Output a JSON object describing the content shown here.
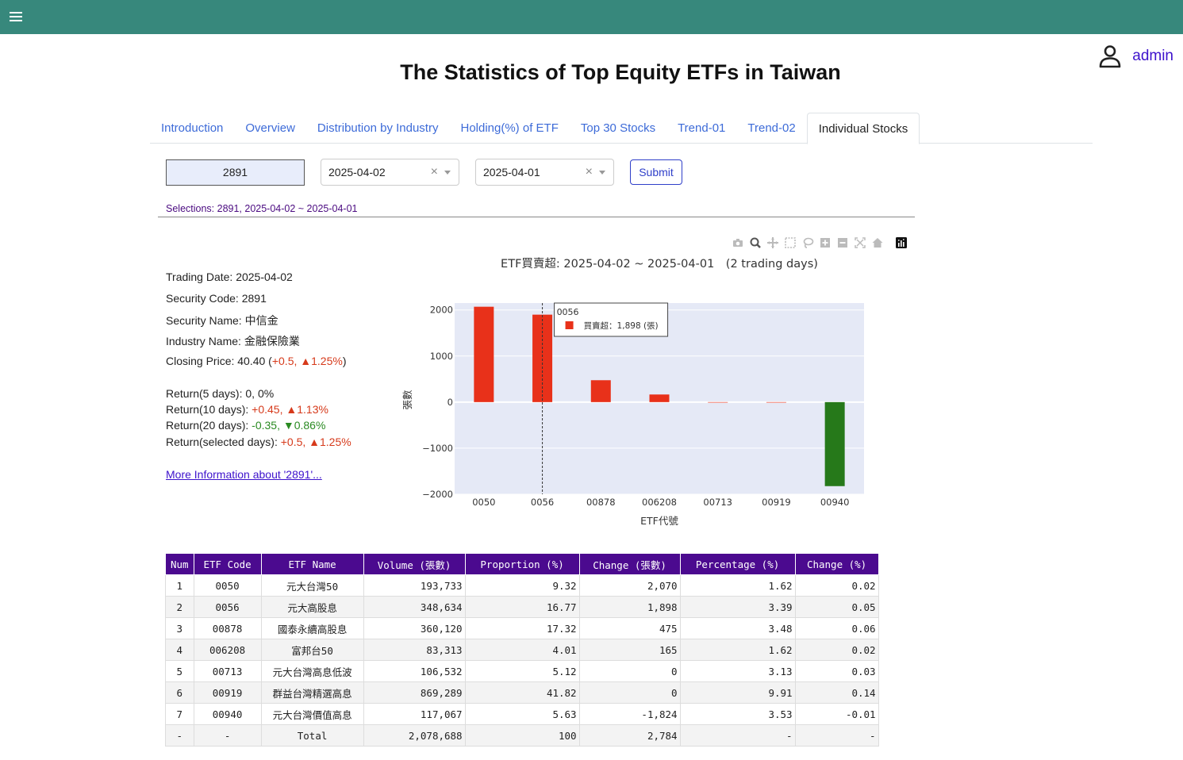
{
  "header": {
    "menu_icon": "hamburger-icon",
    "user_icon": "user-icon",
    "user_name": "admin"
  },
  "page_title": "The Statistics of Top Equity ETFs in Taiwan",
  "tabs": [
    {
      "label": "Introduction"
    },
    {
      "label": "Overview"
    },
    {
      "label": "Distribution by Industry"
    },
    {
      "label": "Holding(%) of ETF"
    },
    {
      "label": "Top 30 Stocks"
    },
    {
      "label": "Trend-01"
    },
    {
      "label": "Trend-02"
    },
    {
      "label": "Individual Stocks",
      "active": true
    }
  ],
  "controls": {
    "code_value": "2891",
    "start_date": "2025-04-02",
    "end_date": "2025-04-01",
    "clear_glyph": "×",
    "submit_label": "Submit",
    "selections": "Selections: 2891, 2025-04-02 ~ 2025-04-01"
  },
  "stock_info": {
    "trading_date": "Trading Date: 2025-04-02",
    "security_code": "Security Code: 2891",
    "security_name": "Security Name: 中信金",
    "industry_name": "Industry Name: 金融保險業",
    "closing_prefix": "Closing Price: 40.40 (",
    "closing_change": "+0.5, ▲1.25%",
    "closing_suffix": ")",
    "returns": [
      {
        "label": "Return(5 days): ",
        "value": "0, 0%",
        "color": "neutral"
      },
      {
        "label": "Return(10 days): ",
        "value": "+0.45, ▲1.13%",
        "color": "red"
      },
      {
        "label": "Return(20 days): ",
        "value": "-0.35, ▼0.86%",
        "color": "green"
      },
      {
        "label": "Return(selected days): ",
        "value": "+0.5, ▲1.25%",
        "color": "red"
      }
    ],
    "more_link": "More Information about '2891'..."
  },
  "modebar_icons": [
    "camera-icon",
    "zoom-icon",
    "pan-icon",
    "box-select-icon",
    "lasso-icon",
    "zoom-in-icon",
    "zoom-out-icon",
    "autoscale-icon",
    "reset-axes-icon",
    "plotly-logo-icon"
  ],
  "chart_data": {
    "type": "bar",
    "title": "ETF買賣超: 2025-04-02 ~ 2025-04-01　(2 trading days)",
    "xlabel": "ETF代號",
    "ylabel": "張數",
    "categories": [
      "0050",
      "0056",
      "00878",
      "006208",
      "00713",
      "00919",
      "00940"
    ],
    "values": [
      2070,
      1898,
      475,
      165,
      0,
      0,
      -1824
    ],
    "ylim": [
      -2000,
      2150
    ],
    "yticks": [
      -2000,
      -1000,
      0,
      1000,
      2000
    ],
    "ytick_labels": [
      "−2000",
      "−1000",
      "0",
      "1000",
      "2000"
    ],
    "colors": {
      "positive": "#e8311a",
      "negative": "#26791a",
      "plot_bg": "#e5e9f6"
    },
    "hover": {
      "category": "0056",
      "label": "買賣超：1,898 (張)"
    }
  },
  "table": {
    "headers": [
      "Num",
      "ETF Code",
      "ETF Name",
      "Volume (張數)",
      "Proportion (%)",
      "Change (張數)",
      "Percentage (%)",
      "Change (%)"
    ],
    "rows": [
      [
        "1",
        "0050",
        "元大台灣50",
        "193,733",
        "9.32",
        "2,070",
        "1.62",
        "0.02"
      ],
      [
        "2",
        "0056",
        "元大高股息",
        "348,634",
        "16.77",
        "1,898",
        "3.39",
        "0.05"
      ],
      [
        "3",
        "00878",
        "國泰永續高股息",
        "360,120",
        "17.32",
        "475",
        "3.48",
        "0.06"
      ],
      [
        "4",
        "006208",
        "富邦台50",
        "83,313",
        "4.01",
        "165",
        "1.62",
        "0.02"
      ],
      [
        "5",
        "00713",
        "元大台灣高息低波",
        "106,532",
        "5.12",
        "0",
        "3.13",
        "0.03"
      ],
      [
        "6",
        "00919",
        "群益台灣精選高息",
        "869,289",
        "41.82",
        "0",
        "9.91",
        "0.14"
      ],
      [
        "7",
        "00940",
        "元大台灣價值高息",
        "117,067",
        "5.63",
        "-1,824",
        "3.53",
        "-0.01"
      ],
      [
        "-",
        "-",
        "Total",
        "2,078,688",
        "100",
        "2,784",
        "-",
        "-"
      ]
    ]
  }
}
